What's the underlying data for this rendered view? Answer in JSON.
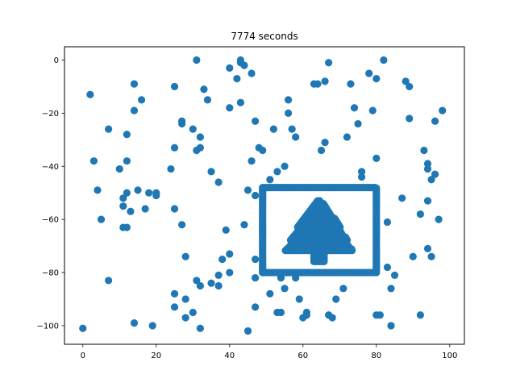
{
  "chart_data": {
    "type": "scatter",
    "title": "7774 seconds",
    "xlabel": "",
    "ylabel": "",
    "xlim": [
      -5,
      104
    ],
    "ylim": [
      -107,
      5
    ],
    "xticks": [
      0,
      20,
      40,
      60,
      80,
      100
    ],
    "yticks": [
      0,
      -20,
      -40,
      -60,
      -80,
      -100
    ],
    "xtick_labels": [
      "0",
      "20",
      "40",
      "60",
      "80",
      "100"
    ],
    "ytick_labels": [
      "0",
      "−20",
      "−40",
      "−60",
      "−80",
      "−100"
    ],
    "grid": false,
    "legend": "none",
    "marker_color": "#1f77b4",
    "scatter_points": [
      [
        0,
        -101
      ],
      [
        2,
        -13
      ],
      [
        3,
        -38
      ],
      [
        4,
        -49
      ],
      [
        5,
        -60
      ],
      [
        7,
        -26
      ],
      [
        7,
        -83
      ],
      [
        10,
        -41
      ],
      [
        11,
        -52
      ],
      [
        11,
        -55
      ],
      [
        11,
        -63
      ],
      [
        12,
        -50
      ],
      [
        12,
        -38
      ],
      [
        12,
        -28
      ],
      [
        12,
        -63
      ],
      [
        13,
        -57
      ],
      [
        14,
        -9
      ],
      [
        14,
        -19
      ],
      [
        14,
        -99
      ],
      [
        15,
        -49
      ],
      [
        16,
        -15
      ],
      [
        17,
        -56
      ],
      [
        18,
        -50
      ],
      [
        19,
        -100
      ],
      [
        20,
        -50
      ],
      [
        20,
        -51
      ],
      [
        24,
        -41
      ],
      [
        25,
        -33
      ],
      [
        25,
        -10
      ],
      [
        25,
        -56
      ],
      [
        25,
        -88
      ],
      [
        25,
        -93
      ],
      [
        27,
        -23
      ],
      [
        27,
        -24
      ],
      [
        27,
        -62
      ],
      [
        28,
        -74
      ],
      [
        28,
        -90
      ],
      [
        28,
        -97
      ],
      [
        30,
        -26
      ],
      [
        30,
        -95
      ],
      [
        31,
        0
      ],
      [
        31,
        -34
      ],
      [
        31,
        -83
      ],
      [
        32,
        -33
      ],
      [
        32,
        -29
      ],
      [
        32,
        -85
      ],
      [
        32,
        -101
      ],
      [
        33,
        -11
      ],
      [
        34,
        -15
      ],
      [
        35,
        -42
      ],
      [
        35,
        -84
      ],
      [
        37,
        -46
      ],
      [
        37,
        -81
      ],
      [
        37,
        -85
      ],
      [
        38,
        -75
      ],
      [
        39,
        -64
      ],
      [
        40,
        -3
      ],
      [
        40,
        -18
      ],
      [
        40,
        -73
      ],
      [
        40,
        -80
      ],
      [
        42,
        -7
      ],
      [
        43,
        -16
      ],
      [
        43,
        0
      ],
      [
        43,
        -1
      ],
      [
        44,
        -2
      ],
      [
        44,
        -62
      ],
      [
        45,
        -49
      ],
      [
        45,
        -102
      ],
      [
        46,
        -5
      ],
      [
        46,
        -38
      ],
      [
        47,
        -23
      ],
      [
        47,
        -51
      ],
      [
        47,
        -75
      ],
      [
        47,
        -82
      ],
      [
        47,
        -93
      ],
      [
        48,
        -33
      ],
      [
        49,
        -34
      ],
      [
        51,
        -45
      ],
      [
        51,
        -88
      ],
      [
        52,
        -26
      ],
      [
        53,
        -95
      ],
      [
        53,
        -42
      ],
      [
        54,
        -95
      ],
      [
        54,
        -82
      ],
      [
        55,
        -40
      ],
      [
        55,
        -86
      ],
      [
        56,
        -15
      ],
      [
        56,
        -20
      ],
      [
        57,
        -26
      ],
      [
        58,
        -29
      ],
      [
        58,
        -82
      ],
      [
        59,
        -90
      ],
      [
        60,
        -97
      ],
      [
        61,
        -95
      ],
      [
        61,
        -96
      ],
      [
        63,
        -9
      ],
      [
        64,
        -9
      ],
      [
        64,
        -80
      ],
      [
        65,
        -34
      ],
      [
        66,
        -31
      ],
      [
        66,
        -8
      ],
      [
        67,
        -1
      ],
      [
        67,
        -96
      ],
      [
        68,
        -97
      ],
      [
        69,
        -90
      ],
      [
        71,
        -86
      ],
      [
        72,
        -29
      ],
      [
        73,
        -9
      ],
      [
        74,
        -18
      ],
      [
        75,
        -24
      ],
      [
        76,
        -42
      ],
      [
        76,
        -44
      ],
      [
        78,
        -5
      ],
      [
        79,
        -19
      ],
      [
        80,
        -7
      ],
      [
        80,
        -37
      ],
      [
        80,
        -96
      ],
      [
        81,
        -96
      ],
      [
        82,
        0
      ],
      [
        83,
        -61
      ],
      [
        83,
        -78
      ],
      [
        84,
        -86
      ],
      [
        84,
        -100
      ],
      [
        85,
        -81
      ],
      [
        87,
        -52
      ],
      [
        88,
        -8
      ],
      [
        89,
        -10
      ],
      [
        89,
        -22
      ],
      [
        90,
        -74
      ],
      [
        92,
        -58
      ],
      [
        92,
        -96
      ],
      [
        93,
        -34
      ],
      [
        94,
        -39
      ],
      [
        94,
        -41
      ],
      [
        94,
        -53
      ],
      [
        94,
        -71
      ],
      [
        95,
        -45
      ],
      [
        95,
        -74
      ],
      [
        96,
        -43
      ],
      [
        96,
        -23
      ],
      [
        97,
        -60
      ],
      [
        98,
        -19
      ]
    ],
    "frame": {
      "x_min": 49,
      "x_max": 80,
      "y_min": -80,
      "y_max": -48,
      "step": 0.6
    },
    "tree": {
      "center_x": 64.5,
      "top_y": -53,
      "tiers": [
        {
          "y_top": -53,
          "y_bottom": -63,
          "half_width_top": 0.5,
          "half_width_bottom": 6
        },
        {
          "y_top": -59,
          "y_bottom": -68,
          "half_width_top": 2.5,
          "half_width_bottom": 8
        },
        {
          "y_top": -64,
          "y_bottom": -72,
          "half_width_top": 3.5,
          "half_width_bottom": 9.5
        }
      ],
      "trunk": {
        "x_min": 63,
        "x_max": 66,
        "y_top": -72,
        "y_bottom": -76
      },
      "step": 0.55
    }
  }
}
